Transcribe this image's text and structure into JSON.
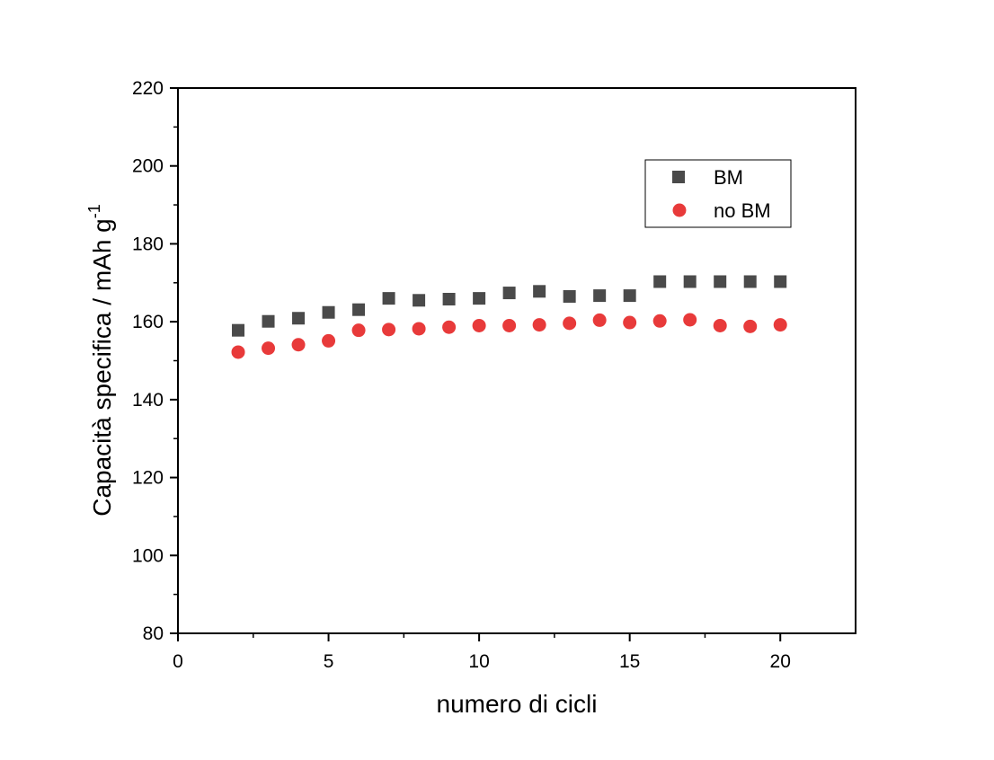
{
  "chart_data": {
    "type": "scatter",
    "title": "",
    "xlabel": "numero di cicli",
    "ylabel": "Capacità specifica / mAh g",
    "ylabel_superscript": "-1",
    "xlim": [
      0,
      22.5
    ],
    "ylim": [
      80,
      220
    ],
    "x_ticks": [
      0,
      5,
      10,
      15,
      20
    ],
    "y_ticks": [
      80,
      100,
      120,
      140,
      160,
      180,
      200,
      220
    ],
    "grid": false,
    "legend_position": "top-right",
    "series": [
      {
        "name": "BM",
        "marker": "square",
        "color": "#4a4a4a",
        "x": [
          2,
          3,
          4,
          5,
          6,
          7,
          8,
          9,
          10,
          11,
          12,
          13,
          14,
          15,
          16,
          17,
          18,
          19,
          20
        ],
        "y": [
          157.8,
          160.1,
          160.9,
          162.4,
          163.1,
          166.0,
          165.5,
          165.8,
          166.0,
          167.4,
          167.8,
          166.5,
          166.7,
          166.7,
          170.3,
          170.3,
          170.3,
          170.3,
          170.3
        ]
      },
      {
        "name": "no BM",
        "marker": "circle",
        "color": "#e83a3a",
        "x": [
          2,
          3,
          4,
          5,
          6,
          7,
          8,
          9,
          10,
          11,
          12,
          13,
          14,
          15,
          16,
          17,
          18,
          19,
          20
        ],
        "y": [
          152.2,
          153.2,
          154.1,
          155.1,
          157.8,
          158.0,
          158.2,
          158.6,
          159.0,
          159.0,
          159.2,
          159.6,
          160.4,
          159.8,
          160.2,
          160.5,
          159.0,
          158.8,
          159.2
        ]
      }
    ]
  }
}
